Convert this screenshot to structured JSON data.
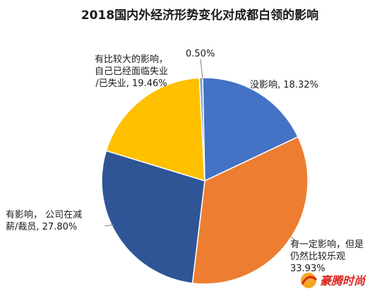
{
  "chart_data": {
    "type": "pie",
    "title": "2018国内外经济形势变化对成都白领的影响",
    "slices": [
      {
        "label_lines": [
          "没影响, 18.32%"
        ],
        "value": 18.32,
        "color": "#4472c4"
      },
      {
        "label_lines": [
          "有一定影响，但是",
          "仍然比较乐观",
          "33.93%"
        ],
        "value": 33.93,
        "color": "#ed7d31"
      },
      {
        "label_lines": [
          "有影响， 公司在减",
          "薪/裁员, 27.80%"
        ],
        "value": 27.8,
        "color": "#2f5597"
      },
      {
        "label_lines": [
          "有比较大的影响，",
          "自己已经面临失业",
          "/已失业, 19.46%"
        ],
        "value": 19.46,
        "color": "#ffc000"
      },
      {
        "label_lines": [
          "0.50%"
        ],
        "value": 0.5,
        "color": "#7ca0d8"
      }
    ]
  },
  "watermark": {
    "text": "豪腾时尚",
    "color": "#d9261c"
  }
}
